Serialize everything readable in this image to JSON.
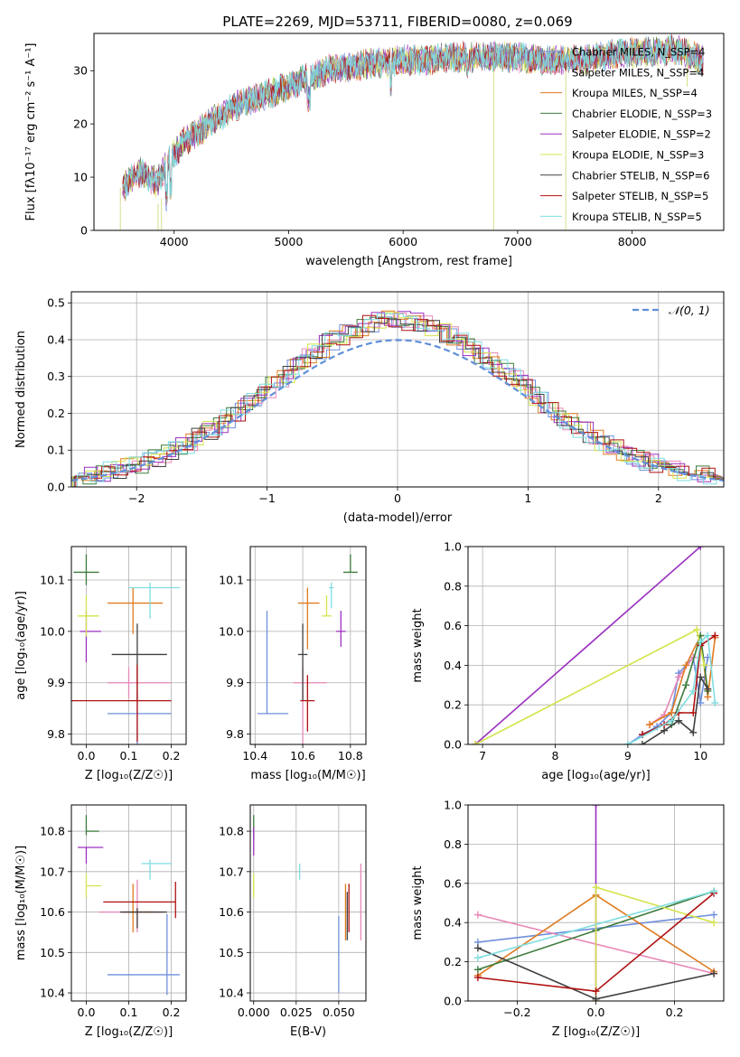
{
  "figure_title": "PLATE=2269, MJD=53711, FIBERID=0080, z=0.069",
  "model_colors": [
    "#6f8fdd",
    "#e888b8",
    "#e07b20",
    "#3c7c3c",
    "#9b30c0",
    "#d4e44c",
    "#404040",
    "#b01010",
    "#7fdde0"
  ],
  "chart_data": [
    {
      "id": "spectrum",
      "type": "line",
      "title": "PLATE=2269, MJD=53711, FIBERID=0080, z=0.069",
      "xlabel": "wavelength [Angstrom, rest frame]",
      "ylabel": "Flux [fλ10⁻¹⁷ erg cm⁻² s⁻¹ A⁻¹]",
      "xlim": [
        3300,
        8800
      ],
      "ylim": [
        0,
        37
      ],
      "xticks": [
        4000,
        5000,
        6000,
        7000,
        8000
      ],
      "yticks": [
        0,
        10,
        20,
        30
      ],
      "grid": false,
      "legend_position": "top-right",
      "continuum": {
        "x": [
          3550,
          3700,
          3850,
          3950,
          4100,
          4250,
          4400,
          4600,
          4800,
          5000,
          5200,
          5400,
          5600,
          5800,
          6000,
          6200,
          6400,
          6600,
          6800,
          7000,
          7200,
          7400,
          7600,
          7800,
          8000,
          8200,
          8400,
          8600
        ],
        "y": [
          8,
          11,
          9,
          13,
          17,
          19,
          21.5,
          24,
          25.5,
          27,
          29,
          30.5,
          31,
          31.5,
          32,
          32,
          32.5,
          32.5,
          32.5,
          32.5,
          32,
          32,
          32,
          33,
          33.5,
          33.5,
          34,
          32
        ]
      },
      "series": [
        {
          "name": "Chabrier MILES, N_SSP=4"
        },
        {
          "name": "Salpeter MILES, N_SSP=4"
        },
        {
          "name": "Kroupa MILES, N_SSP=4"
        },
        {
          "name": "Chabrier ELODIE, N_SSP=3"
        },
        {
          "name": "Salpeter ELODIE, N_SSP=2"
        },
        {
          "name": "Kroupa ELODIE, N_SSP=3"
        },
        {
          "name": "Chabrier STELIB, N_SSP=6"
        },
        {
          "name": "Salpeter STELIB, N_SSP=5"
        },
        {
          "name": "Kroupa STELIB, N_SSP=5"
        }
      ]
    },
    {
      "id": "residuals",
      "type": "line",
      "xlabel": "(data-model)/error",
      "ylabel": "Normed distribution",
      "xlim": [
        -2.5,
        2.5
      ],
      "ylim": [
        0,
        0.53
      ],
      "xticks": [
        -2,
        -1,
        0,
        1,
        2
      ],
      "yticks": [
        0.0,
        0.1,
        0.2,
        0.3,
        0.4,
        0.5
      ],
      "grid": true,
      "legend_position": "top-right",
      "reference": {
        "name": "𝒩(0, 1)",
        "mean": 0,
        "sigma": 1
      },
      "bin_width": 0.1
    },
    {
      "id": "age_vs_Z",
      "type": "scatter",
      "xlabel": "Z [log₁₀(Z/Z☉)]",
      "ylabel": "age  [log₁₀(age/yr)]",
      "xlim": [
        -0.035,
        0.235
      ],
      "ylim": [
        9.78,
        10.165
      ],
      "xticks": [
        0.0,
        0.1,
        0.2
      ],
      "yticks": [
        9.8,
        9.9,
        10.0,
        10.1
      ],
      "grid": true,
      "points": [
        {
          "x": 0.12,
          "y": 9.84,
          "xerr": [
            0.07,
            0.08
          ],
          "yerr": [
            0.06,
            0.04
          ]
        },
        {
          "x": 0.1,
          "y": 9.9,
          "xerr": [
            0.05,
            0.1
          ],
          "yerr": [
            0.03,
            0.03
          ]
        },
        {
          "x": 0.11,
          "y": 10.055,
          "xerr": [
            0.06,
            0.07
          ],
          "yerr": [
            0.06,
            0.03
          ]
        },
        {
          "x": 0.0,
          "y": 10.115,
          "xerr": [
            0.03,
            0.03
          ],
          "yerr": [
            0.025,
            0.035
          ]
        },
        {
          "x": 0.0,
          "y": 10.0,
          "xerr": [
            0.015,
            0.035
          ],
          "yerr": [
            0.06,
            0.04
          ]
        },
        {
          "x": 0.0,
          "y": 10.03,
          "xerr": [
            0.02,
            0.03
          ],
          "yerr": [
            0.04,
            0.04
          ]
        },
        {
          "x": 0.12,
          "y": 9.955,
          "xerr": [
            0.06,
            0.07
          ],
          "yerr": [
            0.09,
            0.06
          ]
        },
        {
          "x": 0.12,
          "y": 9.865,
          "xerr": [
            0.17,
            0.08
          ],
          "yerr": [
            0.08,
            0.07
          ]
        },
        {
          "x": 0.15,
          "y": 10.085,
          "xerr": [
            0.05,
            0.07
          ],
          "yerr": [
            0.06,
            0.01
          ]
        }
      ]
    },
    {
      "id": "age_vs_mass",
      "type": "scatter",
      "xlabel": "mass [log₁₀(M/M☉)]",
      "ylabel": "",
      "xlim": [
        10.38,
        10.865
      ],
      "ylim": [
        9.78,
        10.165
      ],
      "xticks": [
        10.4,
        10.6,
        10.8
      ],
      "yticks": [
        9.8,
        9.9,
        10.0,
        10.1
      ],
      "grid": true,
      "points": [
        {
          "x": 10.45,
          "y": 9.84,
          "xerr": [
            0.04,
            0.09
          ],
          "yerr": [
            0.0,
            0.2
          ]
        },
        {
          "x": 10.6,
          "y": 9.9,
          "xerr": [
            0.04,
            0.1
          ],
          "yerr": [
            0.12,
            0.03
          ]
        },
        {
          "x": 10.62,
          "y": 10.055,
          "xerr": [
            0.04,
            0.05
          ],
          "yerr": [
            0.09,
            0.03
          ]
        },
        {
          "x": 10.8,
          "y": 10.115,
          "xerr": [
            0.03,
            0.03
          ],
          "yerr": [
            0.0,
            0.035
          ]
        },
        {
          "x": 10.76,
          "y": 10.0,
          "xerr": [
            0.02,
            0.02
          ],
          "yerr": [
            0.03,
            0.04
          ]
        },
        {
          "x": 10.7,
          "y": 10.03,
          "xerr": [
            0.02,
            0.02
          ],
          "yerr": [
            0.0,
            0.04
          ]
        },
        {
          "x": 10.6,
          "y": 9.955,
          "xerr": [
            0.02,
            0.02
          ],
          "yerr": [
            0.09,
            0.06
          ]
        },
        {
          "x": 10.62,
          "y": 9.865,
          "xerr": [
            0.03,
            0.03
          ],
          "yerr": [
            0.06,
            0.05
          ]
        },
        {
          "x": 10.72,
          "y": 10.085,
          "xerr": [
            0.01,
            0.01
          ],
          "yerr": [
            0.04,
            0.01
          ]
        }
      ]
    },
    {
      "id": "massweight_vs_age",
      "type": "line",
      "xlabel": "age  [log₁₀(age/yr)]",
      "ylabel": "mass weight",
      "xlim": [
        6.8,
        10.32
      ],
      "ylim": [
        0,
        1
      ],
      "xticks": [
        7,
        8,
        9,
        10
      ],
      "yticks": [
        0.0,
        0.2,
        0.4,
        0.6,
        0.8,
        1.0
      ],
      "grid": true,
      "series": [
        {
          "x": [
            9.0,
            9.2,
            9.4,
            9.6,
            9.7,
            9.9,
            10.0,
            10.1
          ],
          "y": [
            0.0,
            0.05,
            0.09,
            0.16,
            0.36,
            0.44,
            0.21,
            0.44
          ]
        },
        {
          "x": [
            9.3,
            9.5,
            9.7,
            9.9
          ],
          "y": [
            0.1,
            0.15,
            0.34,
            0.44
          ]
        },
        {
          "x": [
            9.3,
            9.6,
            9.8,
            10.0,
            10.1,
            10.2
          ],
          "y": [
            0.1,
            0.16,
            0.4,
            0.55,
            0.24,
            0.54
          ]
        },
        {
          "x": [
            9.6,
            9.8,
            10.0,
            10.1
          ],
          "y": [
            0.1,
            0.3,
            0.55,
            0.27
          ]
        },
        {
          "x": [
            6.9,
            10.0
          ],
          "y": [
            0.0,
            1.0
          ]
        },
        {
          "x": [
            6.9,
            9.95,
            10.05
          ],
          "y": [
            0.0,
            0.58,
            0.4
          ]
        },
        {
          "x": [
            9.2,
            9.5,
            9.7,
            9.9,
            10.0,
            10.1
          ],
          "y": [
            0.0,
            0.07,
            0.12,
            0.06,
            0.34,
            0.28
          ]
        },
        {
          "x": [
            9.2,
            9.5,
            9.7,
            9.9,
            10.0,
            10.2
          ],
          "y": [
            0.05,
            0.1,
            0.16,
            0.16,
            0.5,
            0.55
          ]
        },
        {
          "x": [
            9.0,
            9.6,
            9.9,
            10.0,
            10.1,
            10.2
          ],
          "y": [
            0.0,
            0.12,
            0.27,
            0.52,
            0.55,
            0.21
          ]
        }
      ]
    },
    {
      "id": "mass_vs_Z",
      "type": "scatter",
      "xlabel": "Z [log₁₀(Z/Z☉)]",
      "ylabel": "mass [log₁₀(M/M☉)]",
      "xlim": [
        -0.035,
        0.235
      ],
      "ylim": [
        10.38,
        10.865
      ],
      "xticks": [
        0.0,
        0.1,
        0.2
      ],
      "yticks": [
        10.4,
        10.5,
        10.6,
        10.7,
        10.8
      ],
      "grid": true,
      "points": [
        {
          "x": 0.19,
          "y": 10.445,
          "xerr": [
            0.14,
            0.03
          ],
          "yerr": [
            0.05,
            0.15
          ]
        },
        {
          "x": 0.12,
          "y": 10.6,
          "xerr": [
            0.09,
            0.06
          ],
          "yerr": [
            0.05,
            0.08
          ]
        },
        {
          "x": 0.11,
          "y": 10.6,
          "xerr": [
            0.02,
            0.05
          ],
          "yerr": [
            0.05,
            0.07
          ]
        },
        {
          "x": 0.0,
          "y": 10.8,
          "xerr": [
            0.0,
            0.03
          ],
          "yerr": [
            0.01,
            0.04
          ]
        },
        {
          "x": 0.0,
          "y": 10.76,
          "xerr": [
            0.02,
            0.04
          ],
          "yerr": [
            0.04,
            0.0
          ]
        },
        {
          "x": 0.0,
          "y": 10.665,
          "xerr": [
            0.0,
            0.035
          ],
          "yerr": [
            0.03,
            0.03
          ]
        },
        {
          "x": 0.12,
          "y": 10.6,
          "xerr": [
            0.04,
            0.07
          ],
          "yerr": [
            0.04,
            0.01
          ]
        },
        {
          "x": 0.21,
          "y": 10.625,
          "xerr": [
            0.17,
            0.0
          ],
          "yerr": [
            0.04,
            0.05
          ]
        },
        {
          "x": 0.15,
          "y": 10.72,
          "xerr": [
            0.02,
            0.05
          ],
          "yerr": [
            0.04,
            0.01
          ]
        }
      ]
    },
    {
      "id": "mass_vs_EBV",
      "type": "scatter",
      "xlabel": "E(B-V)",
      "ylabel": "",
      "xlim": [
        -0.002,
        0.066
      ],
      "ylim": [
        10.38,
        10.865
      ],
      "xticks": [
        0.0,
        0.025,
        0.05
      ],
      "yticks": [
        10.4,
        10.5,
        10.6,
        10.7,
        10.8
      ],
      "grid": true,
      "points": [
        {
          "x": 0.05,
          "y": 10.5,
          "xerr": [
            0,
            0
          ],
          "yerr": [
            0.1,
            0.09
          ]
        },
        {
          "x": 0.063,
          "y": 10.62,
          "xerr": [
            0,
            0
          ],
          "yerr": [
            0.09,
            0.1
          ]
        },
        {
          "x": 0.054,
          "y": 10.6,
          "xerr": [
            0,
            0
          ],
          "yerr": [
            0.07,
            0.07
          ]
        },
        {
          "x": 0.0,
          "y": 10.8,
          "xerr": [
            0,
            0
          ],
          "yerr": [
            0.02,
            0.04
          ]
        },
        {
          "x": 0.0,
          "y": 10.76,
          "xerr": [
            0,
            0
          ],
          "yerr": [
            0.02,
            0.05
          ]
        },
        {
          "x": 0.0,
          "y": 10.665,
          "xerr": [
            0,
            0
          ],
          "yerr": [
            0.03,
            0.03
          ]
        },
        {
          "x": 0.055,
          "y": 10.6,
          "xerr": [
            0,
            0
          ],
          "yerr": [
            0.07,
            0.05
          ]
        },
        {
          "x": 0.056,
          "y": 10.62,
          "xerr": [
            0,
            0
          ],
          "yerr": [
            0.07,
            0.05
          ]
        },
        {
          "x": 0.027,
          "y": 10.7,
          "xerr": [
            0,
            0
          ],
          "yerr": [
            0.02,
            0.02
          ]
        }
      ]
    },
    {
      "id": "massweight_vs_Z",
      "type": "line",
      "xlabel": "Z [log₁₀(Z/Z☉)]",
      "ylabel": "mass weight",
      "xlim": [
        -0.325,
        0.325
      ],
      "ylim": [
        0,
        1
      ],
      "xticks": [
        -0.2,
        0.0,
        0.2
      ],
      "yticks": [
        0.0,
        0.2,
        0.4,
        0.6,
        0.8,
        1.0
      ],
      "grid": true,
      "series": [
        {
          "x": [
            -0.3,
            0.3
          ],
          "y": [
            0.3,
            0.44
          ]
        },
        {
          "x": [
            -0.3,
            0.3
          ],
          "y": [
            0.44,
            0.14
          ]
        },
        {
          "x": [
            -0.3,
            0.0,
            0.3
          ],
          "y": [
            0.13,
            0.54,
            0.15
          ]
        },
        {
          "x": [
            -0.3,
            0.0,
            0.3
          ],
          "y": [
            0.16,
            0.36,
            0.56
          ]
        },
        {
          "x": [
            0.0,
            0.0
          ],
          "y": [
            0.0,
            1.0
          ]
        },
        {
          "x": [
            0.0,
            0.0,
            0.3
          ],
          "y": [
            0.0,
            0.58,
            0.4
          ]
        },
        {
          "x": [
            -0.3,
            0.0,
            0.3
          ],
          "y": [
            0.27,
            0.01,
            0.14
          ]
        },
        {
          "x": [
            -0.3,
            0.0,
            0.3
          ],
          "y": [
            0.12,
            0.05,
            0.55
          ]
        },
        {
          "x": [
            -0.3,
            0.3
          ],
          "y": [
            0.22,
            0.56
          ]
        }
      ]
    }
  ]
}
